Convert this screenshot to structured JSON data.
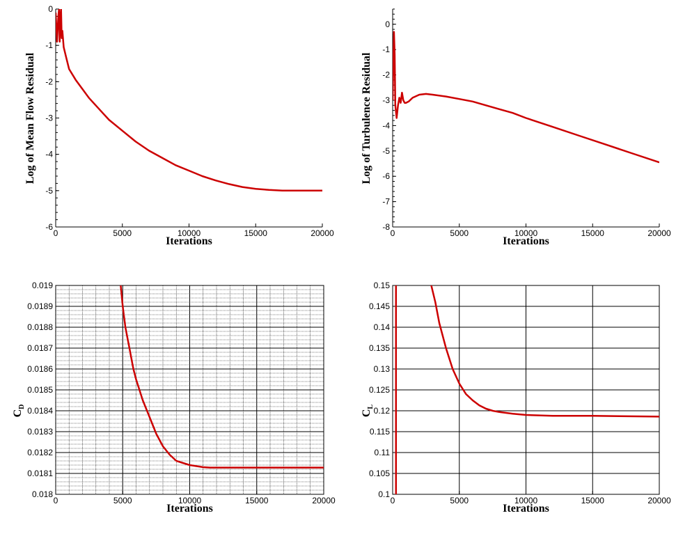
{
  "chart_data": [
    {
      "id": "mean-flow-residual",
      "type": "line",
      "xlabel": "Iterations",
      "ylabel": "Log of Mean Flow Residual",
      "xlim": [
        0,
        20000
      ],
      "ylim": [
        -6,
        0
      ],
      "xticks": [
        0,
        5000,
        10000,
        15000,
        20000
      ],
      "yticks": [
        -6,
        -5,
        -4,
        -3,
        -2,
        -1,
        0
      ],
      "xtick_labels": [
        "0",
        "5000",
        "10000",
        "15000",
        "20000"
      ],
      "ytick_labels": [
        "-6",
        "-5",
        "-4",
        "-3",
        "-2",
        "-1",
        "0"
      ],
      "grid": "none",
      "series": [
        {
          "color": "#cc0000",
          "x": [
            0,
            100,
            200,
            250,
            300,
            350,
            400,
            450,
            500,
            600,
            800,
            1000,
            1500,
            2000,
            2500,
            3000,
            3500,
            4000,
            5000,
            6000,
            7000,
            8000,
            9000,
            10000,
            11000,
            12000,
            13000,
            14000,
            15000,
            16000,
            17000,
            18000,
            19000,
            20000
          ],
          "y": [
            -0.1,
            -0.9,
            -0.2,
            0.0,
            -0.9,
            -0.3,
            0.0,
            -0.8,
            -0.6,
            -1.05,
            -1.35,
            -1.65,
            -1.95,
            -2.2,
            -2.45,
            -2.65,
            -2.85,
            -3.05,
            -3.35,
            -3.65,
            -3.9,
            -4.1,
            -4.3,
            -4.45,
            -4.6,
            -4.72,
            -4.82,
            -4.9,
            -4.95,
            -4.98,
            -5.0,
            -5.0,
            -5.0,
            -5.0
          ]
        }
      ]
    },
    {
      "id": "turbulence-residual",
      "type": "line",
      "xlabel": "Iterations",
      "ylabel": "Log of Turbulence Residual",
      "xlim": [
        0,
        20000
      ],
      "ylim": [
        -8,
        0.6
      ],
      "xticks": [
        0,
        5000,
        10000,
        15000,
        20000
      ],
      "yticks": [
        -8,
        -7,
        -6,
        -5,
        -4,
        -3,
        -2,
        -1,
        0
      ],
      "xtick_labels": [
        "0",
        "5000",
        "10000",
        "15000",
        "20000"
      ],
      "ytick_labels": [
        "-8",
        "-7",
        "-6",
        "-5",
        "-4",
        "-3",
        "-2",
        "-1",
        "0"
      ],
      "grid": "none",
      "series": [
        {
          "color": "#cc0000",
          "x": [
            0,
            50,
            100,
            150,
            200,
            300,
            400,
            500,
            600,
            700,
            800,
            900,
            1000,
            1200,
            1500,
            2000,
            2500,
            3000,
            4000,
            5000,
            6000,
            7000,
            8000,
            9000,
            10000,
            12000,
            14000,
            16000,
            18000,
            20000
          ],
          "y": [
            -3.0,
            -1.5,
            -0.3,
            -1.2,
            -3.2,
            -3.7,
            -3.2,
            -2.9,
            -3.1,
            -2.7,
            -3.0,
            -3.1,
            -3.1,
            -3.05,
            -2.9,
            -2.78,
            -2.75,
            -2.78,
            -2.85,
            -2.95,
            -3.05,
            -3.2,
            -3.35,
            -3.5,
            -3.7,
            -4.05,
            -4.4,
            -4.75,
            -5.1,
            -5.45
          ]
        }
      ]
    },
    {
      "id": "drag-coefficient",
      "type": "line",
      "xlabel": "Iterations",
      "ylabel": "C",
      "ylabel_subscript": "D",
      "xlim": [
        0,
        20000
      ],
      "ylim": [
        0.018,
        0.019
      ],
      "xticks": [
        0,
        5000,
        10000,
        15000,
        20000
      ],
      "yticks": [
        0.018,
        0.0181,
        0.0182,
        0.0183,
        0.0184,
        0.0185,
        0.0186,
        0.0187,
        0.0188,
        0.0189,
        0.019
      ],
      "xtick_labels": [
        "0",
        "5000",
        "10000",
        "15000",
        "20000"
      ],
      "ytick_labels": [
        "0.018",
        "0.0181",
        "0.0182",
        "0.0183",
        "0.0184",
        "0.0185",
        "0.0186",
        "0.0187",
        "0.0188",
        "0.0189",
        "0.019"
      ],
      "grid": "major and minor",
      "series": [
        {
          "color": "#cc0000",
          "x": [
            4850,
            5000,
            5200,
            5500,
            5800,
            6000,
            6500,
            7000,
            7500,
            8000,
            8500,
            9000,
            9500,
            10000,
            10500,
            11000,
            11500,
            12000,
            13000,
            14000,
            15000,
            16000,
            17000,
            18000,
            19000,
            20000
          ],
          "y": [
            0.019,
            0.0189,
            0.0188,
            0.0187,
            0.0186,
            0.01855,
            0.01845,
            0.01837,
            0.01829,
            0.01823,
            0.01819,
            0.01816,
            0.01815,
            0.01814,
            0.018135,
            0.01813,
            0.018128,
            0.018128,
            0.018128,
            0.018128,
            0.018128,
            0.018128,
            0.018128,
            0.018128,
            0.018128,
            0.018128
          ]
        }
      ]
    },
    {
      "id": "lift-coefficient",
      "type": "line",
      "xlabel": "Iterations",
      "ylabel": "C",
      "ylabel_subscript": "L",
      "xlim": [
        0,
        20000
      ],
      "ylim": [
        0.1,
        0.15
      ],
      "xticks": [
        0,
        5000,
        10000,
        15000,
        20000
      ],
      "yticks": [
        0.1,
        0.105,
        0.11,
        0.115,
        0.12,
        0.125,
        0.13,
        0.135,
        0.14,
        0.145,
        0.15
      ],
      "xtick_labels": [
        "0",
        "5000",
        "10000",
        "15000",
        "20000"
      ],
      "ytick_labels": [
        "0.1",
        "0.105",
        "0.11",
        "0.115",
        "0.12",
        "0.125",
        "0.13",
        "0.135",
        "0.14",
        "0.145",
        "0.15"
      ],
      "grid": "major",
      "series": [
        {
          "color": "#cc0000",
          "x": [
            250,
            250
          ],
          "y": [
            0.1,
            0.15
          ]
        },
        {
          "color": "#cc0000",
          "x": [
            2900,
            3200,
            3500,
            4000,
            4500,
            5000,
            5500,
            6000,
            6500,
            7000,
            7500,
            8000,
            9000,
            10000,
            12000,
            15000,
            17000,
            20000
          ],
          "y": [
            0.15,
            0.146,
            0.141,
            0.135,
            0.13,
            0.1265,
            0.124,
            0.1225,
            0.1213,
            0.1205,
            0.12,
            0.1197,
            0.1193,
            0.119,
            0.1188,
            0.1188,
            0.1187,
            0.1186
          ]
        }
      ]
    }
  ]
}
